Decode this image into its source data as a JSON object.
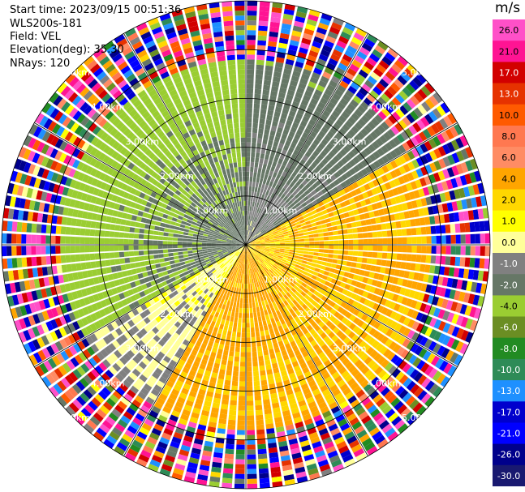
{
  "header": {
    "start_time": "Start time: 2023/09/15 00:51:36",
    "instrument": "WLS200s-181",
    "field": "Field: VEL",
    "elevation": "Elevation(deg): 35.30",
    "nrays": "NRays: 120"
  },
  "colorbar": {
    "unit": "m/s",
    "ticks": [
      "26.0",
      "21.0",
      "17.0",
      "13.0",
      "10.0",
      "8.0",
      "6.0",
      "4.0",
      "2.0",
      "1.0",
      "0.0",
      "-1.0",
      "-2.0",
      "-4.0",
      "-6.0",
      "-8.0",
      "-10.0",
      "-13.0",
      "-17.0",
      "-21.0",
      "-26.0",
      "-30.0"
    ],
    "colors": [
      "#ff50c8",
      "#ff1493",
      "#d20000",
      "#e63200",
      "#ff5a00",
      "#ff7850",
      "#ff8c64",
      "#ffa500",
      "#ffd700",
      "#ffff00",
      "#ffff9a",
      "#808080",
      "#667766",
      "#9acd32",
      "#6b8e23",
      "#228b22",
      "#2e8b57",
      "#1e90ff",
      "#0000cd",
      "#0000ff",
      "#00008b",
      "#191970"
    ]
  },
  "chart_data": {
    "type": "ppi",
    "field": "VEL",
    "unit": "m/s",
    "nrays": 120,
    "range_rings_km": [
      1.0,
      2.0,
      3.0,
      4.0,
      5.0
    ],
    "ring_labels": [
      "1.00km",
      "2.00km",
      "3.00km",
      "4.00km",
      "5.00km"
    ],
    "max_range_km": 5.0,
    "gates_per_ray": 50,
    "sectors": [
      {
        "from_az": 0,
        "to_az": 60,
        "near_mps": -1.5,
        "far_mps": -4.0
      },
      {
        "from_az": 60,
        "to_az": 150,
        "near_mps": 1.5,
        "far_mps": 2.5
      },
      {
        "from_az": 150,
        "to_az": 210,
        "near_mps": 2.5,
        "far_mps": 2.0
      },
      {
        "from_az": 210,
        "to_az": 240,
        "near_mps": 0.0,
        "far_mps": -1.5
      },
      {
        "from_az": 240,
        "to_az": 360,
        "near_mps": -3.0,
        "far_mps": -6.0
      }
    ],
    "noise_from_km": 3.8
  }
}
